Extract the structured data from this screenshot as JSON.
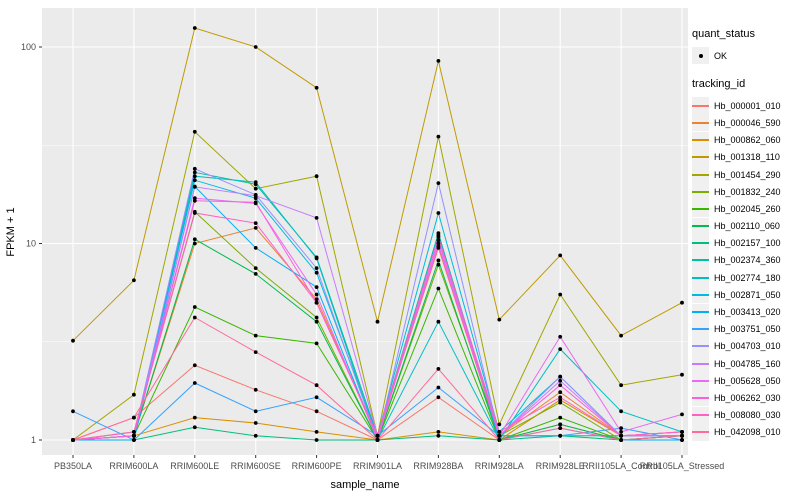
{
  "figure": {
    "background": "#FFFFFF",
    "panel_background": "#EBEBEB",
    "gridline_color": "#FFFFFF",
    "tick_color": "#333333",
    "tick_label_color": "#4D4D4D",
    "point_color": "#000000"
  },
  "legend": {
    "quant_status_title": "quant_status",
    "quant_status_ok": "OK",
    "tracking_title": "tracking_id",
    "key_background": "#F0F0F0",
    "position": "right"
  },
  "chart_data": {
    "type": "line",
    "title": "",
    "xlabel": "sample_name",
    "ylabel": "FPKM + 1",
    "y_scale": "log10",
    "y_tick_labels": [
      "1",
      "10",
      "100"
    ],
    "y_tick_values": [
      1,
      10,
      100
    ],
    "y_minor_values": [
      3.1623,
      31.623
    ],
    "ylim": [
      0.84,
      158
    ],
    "grid": true,
    "legend_position": "right",
    "categories": [
      "PB350LA",
      "RRIM600LA",
      "RRIM600LE",
      "RRIM600SE",
      "RRIM600PE",
      "RRIM901LA",
      "RRIM928BA",
      "RRIM928LA",
      "RRIM928LE",
      "RRII105LA_Control",
      "RRII105LA_Stressed"
    ],
    "series": [
      {
        "name": "Hb_000001_010",
        "color": "#F8766D",
        "values": [
          1.0,
          1.3,
          2.4,
          1.8,
          1.4,
          1.0,
          1.65,
          1.0,
          1.2,
          1.0,
          1.05
        ]
      },
      {
        "name": "Hb_000046_590",
        "color": "#EA8331",
        "values": [
          1.0,
          1.05,
          10.0,
          12.0,
          5.2,
          1.05,
          9.5,
          1.05,
          1.75,
          1.05,
          1.05
        ]
      },
      {
        "name": "Hb_000862_060",
        "color": "#D89000",
        "values": [
          1.0,
          1.05,
          1.3,
          1.22,
          1.1,
          1.0,
          1.1,
          1.0,
          1.6,
          1.05,
          1.1
        ]
      },
      {
        "name": "Hb_001318_110",
        "color": "#C09B00",
        "values": [
          3.2,
          6.5,
          125,
          100,
          62,
          4.0,
          85,
          4.1,
          8.7,
          3.4,
          5.0
        ]
      },
      {
        "name": "Hb_001454_290",
        "color": "#A3A500",
        "values": [
          1.0,
          1.7,
          37,
          19,
          22,
          1.05,
          35,
          1.2,
          5.5,
          1.9,
          2.15
        ]
      },
      {
        "name": "Hb_001832_240",
        "color": "#7CAE00",
        "values": [
          1.0,
          1.1,
          14.5,
          7.5,
          4.2,
          1.0,
          7.8,
          1.05,
          1.55,
          1.0,
          1.05
        ]
      },
      {
        "name": "Hb_002045_260",
        "color": "#39B600",
        "values": [
          1.0,
          1.05,
          4.75,
          3.4,
          3.1,
          1.0,
          5.9,
          1.0,
          1.3,
          1.0,
          1.0
        ]
      },
      {
        "name": "Hb_002110_060",
        "color": "#00BB4E",
        "values": [
          1.0,
          1.05,
          10.5,
          7.0,
          4.0,
          1.0,
          8.2,
          1.0,
          1.2,
          1.0,
          1.05
        ]
      },
      {
        "name": "Hb_002157_100",
        "color": "#00BF7D",
        "values": [
          1.0,
          1.0,
          1.16,
          1.05,
          1.0,
          1.0,
          1.05,
          1.0,
          1.05,
          1.0,
          1.0
        ]
      },
      {
        "name": "Hb_002374_360",
        "color": "#00C1A3",
        "values": [
          1.0,
          1.05,
          23,
          20,
          8.5,
          1.05,
          11.3,
          1.05,
          1.05,
          1.05,
          1.05
        ]
      },
      {
        "name": "Hb_002774_180",
        "color": "#00BFC4",
        "values": [
          1.0,
          1.05,
          22,
          20.5,
          8.4,
          1.0,
          4.0,
          1.0,
          2.9,
          1.4,
          1.1
        ]
      },
      {
        "name": "Hb_002871_050",
        "color": "#00BAE0",
        "values": [
          1.0,
          1.05,
          21,
          17,
          7.1,
          1.05,
          14.3,
          1.1,
          2.1,
          1.05,
          1.05
        ]
      },
      {
        "name": "Hb_003413_020",
        "color": "#00B0F6",
        "values": [
          1.0,
          1.0,
          19.5,
          9.5,
          6.0,
          1.0,
          11.0,
          1.0,
          1.15,
          1.0,
          1.0
        ]
      },
      {
        "name": "Hb_003751_050",
        "color": "#35A2FF",
        "values": [
          1.4,
          1.0,
          1.95,
          1.4,
          1.65,
          1.05,
          1.85,
          1.05,
          1.05,
          1.15,
          1.0
        ]
      },
      {
        "name": "Hb_004703_010",
        "color": "#9590FF",
        "values": [
          1.0,
          1.05,
          24,
          17.7,
          7.5,
          1.0,
          20.3,
          1.05,
          2.1,
          1.05,
          1.05
        ]
      },
      {
        "name": "Hb_004785_160",
        "color": "#C77CFF",
        "values": [
          1.0,
          1.05,
          19.4,
          17.5,
          13.5,
          1.05,
          10.0,
          1.05,
          2.0,
          1.05,
          1.05
        ]
      },
      {
        "name": "Hb_005628_050",
        "color": "#E76BF3",
        "values": [
          1.0,
          1.05,
          17.0,
          16.0,
          5.5,
          1.0,
          10.4,
          1.05,
          3.35,
          1.1,
          1.35
        ]
      },
      {
        "name": "Hb_006262_030",
        "color": "#FA62DB",
        "values": [
          1.0,
          1.05,
          16.5,
          16.2,
          5.0,
          1.05,
          9.7,
          1.05,
          1.9,
          1.05,
          1.1
        ]
      },
      {
        "name": "Hb_008080_030",
        "color": "#FF61C3",
        "values": [
          1.0,
          1.1,
          14.3,
          12.7,
          5.0,
          1.05,
          10.8,
          1.1,
          1.65,
          1.05,
          1.1
        ]
      },
      {
        "name": "Hb_042098_010",
        "color": "#FF6A98",
        "values": [
          1.0,
          1.3,
          4.2,
          2.8,
          1.9,
          1.0,
          2.3,
          1.0,
          1.15,
          1.0,
          1.05
        ]
      }
    ]
  }
}
